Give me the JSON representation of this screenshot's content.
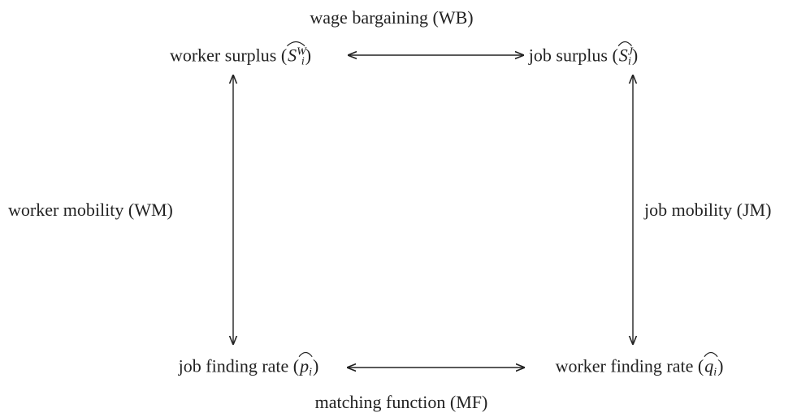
{
  "edges": [
    {
      "label": "wage bargaining (WB)"
    },
    {
      "label": "worker mobility (WM)"
    },
    {
      "label": "job mobility (JM)"
    },
    {
      "label": "matching function (MF)"
    }
  ],
  "nodes": [
    {
      "label": "worker surplus (",
      "math": {
        "base": "S",
        "sub": "i",
        "sup": "W"
      },
      "close": ")"
    },
    {
      "label": "job surplus (",
      "math": {
        "base": "S",
        "sub": "i",
        "sup": "J"
      },
      "close": ")"
    },
    {
      "label": "job finding rate (",
      "math": {
        "base": "p",
        "sub": "i"
      },
      "close": ")"
    },
    {
      "label": "worker finding rate (",
      "math": {
        "base": "q",
        "sub": "i"
      },
      "close": ")"
    }
  ]
}
